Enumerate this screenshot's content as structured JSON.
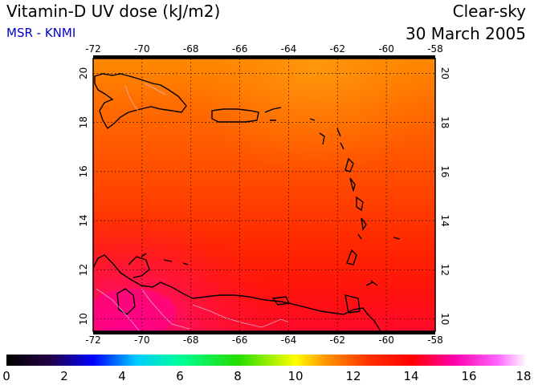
{
  "header": {
    "title": "Vitamin-D UV dose (kJ/m2)",
    "subtitle": "MSR - KNMI",
    "sky_type": "Clear-sky",
    "date": "30 March 2005"
  },
  "colors": {
    "subtitle": "#0000cc",
    "frame": "#000000",
    "grid": "#000000"
  },
  "map": {
    "lon_ticks": [
      "-72",
      "-70",
      "-68",
      "-66",
      "-64",
      "-62",
      "-60",
      "-58"
    ],
    "lat_ticks": [
      "10",
      "12",
      "14",
      "16",
      "18",
      "20"
    ],
    "lon_range": [
      -72,
      -58
    ],
    "lat_range": [
      9.5,
      20.6
    ],
    "field_min": 0,
    "field_max": 18,
    "typical_dose": 12.5,
    "south_max_dose": 15.5
  },
  "colorbar": {
    "labels": [
      "0",
      "2",
      "4",
      "6",
      "8",
      "10",
      "12",
      "14",
      "16",
      "18"
    ],
    "stops": [
      {
        "value": 0,
        "color": "#000000"
      },
      {
        "value": 1.5,
        "color": "#220044"
      },
      {
        "value": 3.0,
        "color": "#0000ff"
      },
      {
        "value": 4.5,
        "color": "#00ccff"
      },
      {
        "value": 6.0,
        "color": "#00ff99"
      },
      {
        "value": 8.0,
        "color": "#22dd00"
      },
      {
        "value": 10.0,
        "color": "#ffff00"
      },
      {
        "value": 11.0,
        "color": "#ff9900"
      },
      {
        "value": 12.5,
        "color": "#ff3300"
      },
      {
        "value": 14.0,
        "color": "#ff0000"
      },
      {
        "value": 15.5,
        "color": "#ff00aa"
      },
      {
        "value": 17.0,
        "color": "#ff66ff"
      },
      {
        "value": 18.0,
        "color": "#ffffff"
      }
    ]
  }
}
